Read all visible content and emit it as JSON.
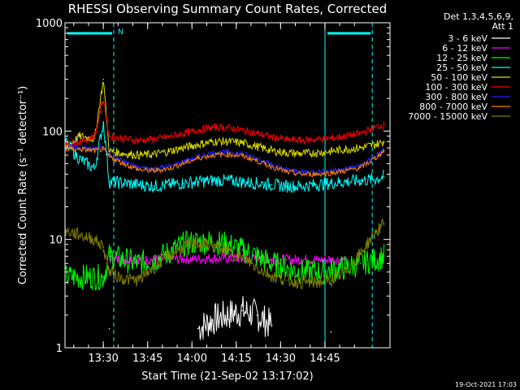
{
  "chart_data": {
    "type": "line",
    "title": "RHESSI Observing Summary Count Rates, Corrected",
    "xlabel": "Start Time (21-Sep-02 13:17:02)",
    "ylabel": "Corrected Count Rate (s⁻¹ detector⁻¹)",
    "yscale": "log",
    "ylim": [
      1,
      1000
    ],
    "xlim_minutes_after_1317": [
      0,
      110
    ],
    "x_ticks": [
      "13:30",
      "13:45",
      "14:00",
      "14:15",
      "14:30",
      "14:45"
    ],
    "y_ticks": [
      "1",
      "10",
      "100",
      "1000"
    ],
    "legend_header": [
      "Det 1,3,4,5,6,9,",
      "Att 1"
    ],
    "legend_position": "right",
    "timestamp": "19-Oct-2021 17:03",
    "annotations": {
      "night_marker_label": "N",
      "night_bars": [
        [
          0,
          16.5
        ],
        [
          88,
          104
        ]
      ],
      "saa_lines": [
        0,
        88
      ],
      "dashed_lines": [
        16.5,
        104
      ]
    },
    "x": [
      0,
      5,
      10,
      13,
      15,
      20,
      25,
      30,
      35,
      40,
      45,
      50,
      55,
      60,
      65,
      70,
      75,
      80,
      85,
      90,
      95,
      100,
      105,
      108
    ],
    "series": [
      {
        "name": "3 - 6 keV",
        "color": "#ffffff",
        "values": [
          null,
          null,
          null,
          null,
          1.5,
          null,
          null,
          null,
          null,
          null,
          1.5,
          1.8,
          2.0,
          2.2,
          2.0,
          1.6,
          null,
          null,
          null,
          1.4,
          null,
          null,
          null,
          null
        ]
      },
      {
        "name": "6 - 12 keV",
        "color": "#ff00ff",
        "values": [
          null,
          null,
          null,
          null,
          6.5,
          6.5,
          6.5,
          6.5,
          6.6,
          6.6,
          6.6,
          6.7,
          6.7,
          6.6,
          6.6,
          6.5,
          6.5,
          6.5,
          6.5,
          6.5,
          6.5,
          null,
          null,
          null
        ]
      },
      {
        "name": "12 - 25 keV",
        "color": "#00ff00",
        "values": [
          4.5,
          4.5,
          4.5,
          4.5,
          7.0,
          6.5,
          6.0,
          6.5,
          7.5,
          9.0,
          9.5,
          9.5,
          9.0,
          8.0,
          7.0,
          6.0,
          5.5,
          5.0,
          5.0,
          5.2,
          5.5,
          6.0,
          6.5,
          7.0
        ]
      },
      {
        "name": "25 - 50 keV",
        "color": "#00ffff",
        "values": [
          80,
          55,
          45,
          120,
          34,
          33,
          32,
          31,
          32,
          33,
          34,
          35,
          35,
          34,
          33,
          32,
          31,
          31,
          32,
          33,
          34,
          35,
          36,
          38
        ]
      },
      {
        "name": "50 - 100 keV",
        "color": "#dddd00",
        "values": [
          70,
          90,
          85,
          300,
          65,
          62,
          60,
          61,
          65,
          70,
          75,
          80,
          80,
          78,
          72,
          66,
          63,
          62,
          63,
          65,
          68,
          70,
          75,
          80
        ]
      },
      {
        "name": "100 - 300 keV",
        "color": "#ff0000",
        "values": [
          75,
          80,
          90,
          200,
          90,
          85,
          82,
          84,
          88,
          95,
          102,
          108,
          108,
          102,
          95,
          88,
          83,
          82,
          84,
          86,
          90,
          95,
          108,
          115
        ]
      },
      {
        "name": "300 - 800 keV",
        "color": "#2222ff",
        "values": [
          72,
          70,
          68,
          70,
          60,
          52,
          46,
          45,
          47,
          52,
          58,
          63,
          64,
          62,
          56,
          49,
          44,
          42,
          42,
          43,
          45,
          48,
          58,
          68
        ]
      },
      {
        "name": "800 - 7000 keV",
        "color": "#ff8000",
        "values": [
          68,
          68,
          66,
          68,
          58,
          50,
          44,
          43,
          45,
          50,
          56,
          60,
          61,
          59,
          53,
          47,
          42,
          40,
          40,
          41,
          43,
          46,
          56,
          66
        ]
      },
      {
        "name": "7000 - 15000 keV",
        "color": "#808000",
        "values": [
          12,
          11,
          10,
          8.5,
          5.0,
          4.3,
          4.2,
          5.5,
          7.0,
          8.5,
          9.2,
          8.8,
          7.8,
          6.8,
          5.5,
          4.6,
          4.2,
          4.0,
          4.0,
          4.2,
          5.0,
          7.5,
          11.5,
          14
        ]
      }
    ]
  }
}
